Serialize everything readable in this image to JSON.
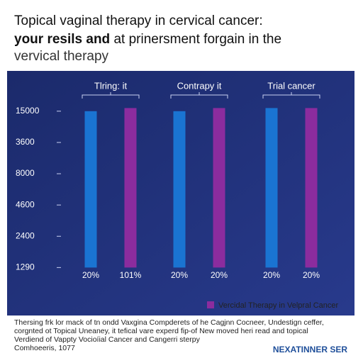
{
  "chart_data": {
    "type": "bar",
    "title": [
      "Topical vaginal therapy in cervical cancer:",
      "your resils and",
      "at prinersment forgain in the",
      "vervical therapy"
    ],
    "categories": [
      "Tlring: it",
      "Contrapy it",
      "Trial cancer"
    ],
    "series": [
      {
        "color": "#1a74d2",
        "values": [
          5,
          5,
          5.1
        ],
        "bar_labels": [
          "20%",
          "20%",
          "20%"
        ]
      },
      {
        "name": "Vercidal Therapy in Velpral Cancer",
        "color": "#8b2c9e",
        "values": [
          5.1,
          5.1,
          5.1
        ],
        "bar_labels": [
          "101%",
          "20%",
          "20%"
        ]
      }
    ],
    "ylim": [
      -0.4,
      5.2
    ],
    "yticks": [
      {
        "value": 0,
        "label": "1290"
      },
      {
        "value": 1,
        "label": "2400"
      },
      {
        "value": 2,
        "label": "4600"
      },
      {
        "value": 3,
        "label": "8000"
      },
      {
        "value": 4,
        "label": "3600"
      },
      {
        "value": 5,
        "label": "15000"
      }
    ],
    "grid": false,
    "legend": "bottom-right",
    "footnote": [
      "Thersing frk lor mack of tn ondd Vaxgina Compderets of he Cagjnn Cocneer, Undestign ceffer,",
      "corgnted ot Topical Uneaney, it tefical vare experd fip-of New moved heri read and topical",
      "Verdiend of Vappty Vocioíial Cancer and Cangerri sterpy",
      "Comhoeeris, 1077"
    ],
    "brand": "NEXATINNER SER"
  }
}
